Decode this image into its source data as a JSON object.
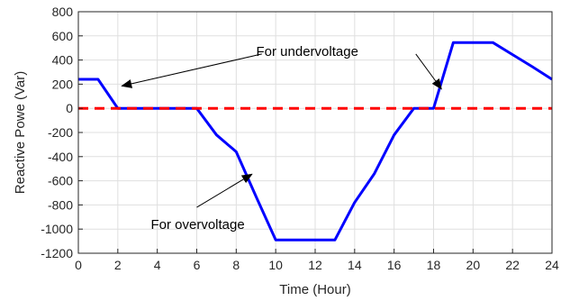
{
  "chart_data": {
    "type": "line",
    "xlabel": "Time (Hour)",
    "ylabel": "Reactive Powe (Var)",
    "xlim": [
      0,
      24
    ],
    "ylim": [
      -1200,
      800
    ],
    "xticks": [
      0,
      2,
      4,
      6,
      8,
      10,
      12,
      14,
      16,
      18,
      20,
      22,
      24
    ],
    "yticks": [
      800,
      600,
      400,
      200,
      0,
      -200,
      -400,
      -600,
      -800,
      -1000,
      -1200
    ],
    "grid": true,
    "series": [
      {
        "color": "#0000ff",
        "style": "solid",
        "x": [
          0,
          1,
          2,
          3,
          4,
          5,
          6,
          7,
          8,
          9,
          10,
          11,
          12,
          13,
          14,
          15,
          16,
          17,
          18,
          19,
          20,
          21,
          22,
          23,
          24
        ],
        "y": [
          240,
          240,
          0,
          0,
          0,
          0,
          0,
          -220,
          -360,
          -730,
          -1090,
          -1090,
          -1090,
          -1090,
          -780,
          -540,
          -220,
          0,
          0,
          545,
          545,
          545,
          445,
          345,
          240
        ]
      },
      {
        "color": "#ff0000",
        "style": "dashed",
        "x": [
          0,
          24
        ],
        "y": [
          0,
          0
        ]
      }
    ],
    "annotations": [
      {
        "text": "For undervoltage",
        "text_at": [
          11.6,
          470
        ],
        "arrows": [
          {
            "from": [
              9.3,
              450
            ],
            "to": [
              2.2,
              185
            ]
          },
          {
            "from": [
              17.1,
              450
            ],
            "to": [
              18.4,
              160
            ]
          }
        ]
      },
      {
        "text": "For overvoltage",
        "text_at": [
          6.05,
          -960
        ],
        "arrows": [
          {
            "from": [
              6.0,
              -820
            ],
            "to": [
              8.8,
              -545
            ]
          }
        ]
      }
    ]
  }
}
